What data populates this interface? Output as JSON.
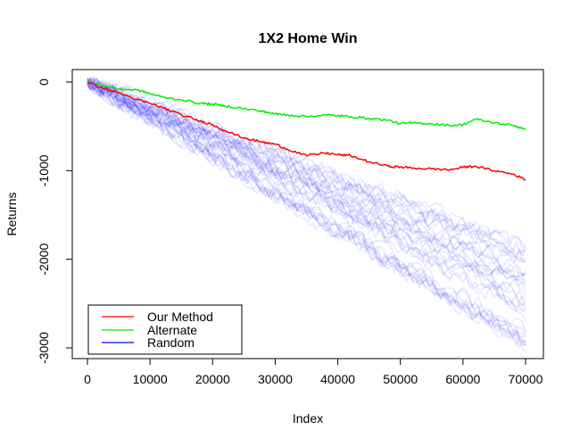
{
  "chart_data": {
    "type": "line",
    "title": "1X2 Home Win",
    "xlabel": "Index",
    "ylabel": "Returns",
    "xlim": [
      0,
      70000
    ],
    "ylim": [
      -3000,
      0
    ],
    "xticks": [
      "0",
      "10000",
      "20000",
      "30000",
      "40000",
      "50000",
      "60000",
      "70000"
    ],
    "yticks": [
      "0",
      "-1000",
      "-2000",
      "-3000"
    ],
    "legend_position": "bottom-left",
    "series": [
      {
        "name": "Our Method",
        "color": "#ff0000",
        "x": [
          0,
          2000,
          5000,
          8000,
          10000,
          12000,
          15000,
          18000,
          20000,
          22000,
          25000,
          28000,
          30000,
          32000,
          35000,
          38000,
          40000,
          42000,
          45000,
          48000,
          50000,
          52000,
          55000,
          58000,
          60000,
          62000,
          65000,
          68000,
          70000
        ],
        "y": [
          0,
          -60,
          -120,
          -200,
          -240,
          -290,
          -370,
          -440,
          -480,
          -550,
          -630,
          -680,
          -700,
          -760,
          -830,
          -800,
          -820,
          -830,
          -900,
          -950,
          -960,
          -970,
          -980,
          -990,
          -960,
          -950,
          -1000,
          -1040,
          -1100
        ]
      },
      {
        "name": "Alternate",
        "color": "#00ee00",
        "x": [
          0,
          2000,
          5000,
          8000,
          10000,
          12000,
          15000,
          18000,
          20000,
          22000,
          25000,
          28000,
          30000,
          32000,
          35000,
          38000,
          40000,
          42000,
          45000,
          48000,
          50000,
          52000,
          55000,
          58000,
          60000,
          62000,
          65000,
          68000,
          70000
        ],
        "y": [
          0,
          -30,
          -80,
          -90,
          -130,
          -170,
          -200,
          -240,
          -250,
          -270,
          -300,
          -330,
          -360,
          -370,
          -390,
          -370,
          -380,
          -390,
          -410,
          -430,
          -470,
          -460,
          -470,
          -490,
          -480,
          -420,
          -460,
          -490,
          -530
        ]
      },
      {
        "name": "Random",
        "color": "#0000ff",
        "x": [
          0,
          70000
        ],
        "y_band_start": [
          -1750,
          -3000
        ],
        "note_count": 35
      }
    ]
  }
}
